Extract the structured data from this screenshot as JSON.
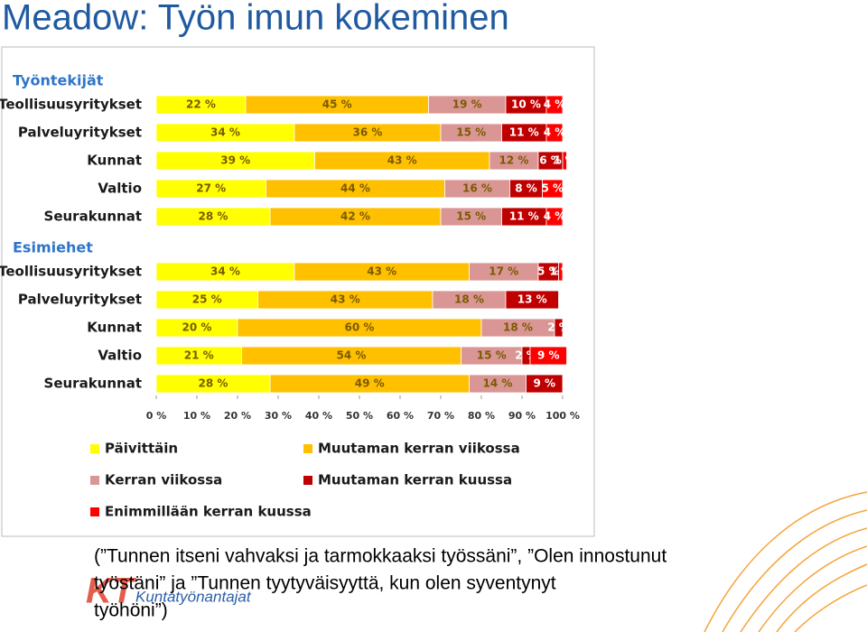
{
  "title": "Meadow: Työn imun kokeminen",
  "chart_data": {
    "type": "bar",
    "orientation": "horizontal",
    "stacked": true,
    "groups": [
      {
        "label": "Työntekijät",
        "count": 5
      },
      {
        "label": "Esimiehet",
        "count": 5
      }
    ],
    "categories": [
      "Teollisuusyritykset",
      "Palveluyritykset",
      "Kunnat",
      "Valtio",
      "Seurakunnat",
      "Teollisuusyritykset",
      "Palveluyritykset",
      "Kunnat",
      "Valtio",
      "Seurakunnat"
    ],
    "series": [
      {
        "name": "Päivittäin",
        "color": "#ffff00",
        "values": [
          22,
          34,
          39,
          27,
          28,
          34,
          25,
          20,
          21,
          28
        ],
        "value_labels": [
          "22 %",
          "34 %",
          "39 %",
          "27 %",
          "28 %",
          "34 %",
          "25 %",
          "20 %",
          "21 %",
          "28 %"
        ]
      },
      {
        "name": "Muutaman kerran viikossa",
        "color": "#ffc000",
        "values": [
          45,
          36,
          43,
          44,
          42,
          43,
          43,
          60,
          54,
          49
        ],
        "value_labels": [
          "45 %",
          "36 %",
          "43 %",
          "44 %",
          "42 %",
          "43 %",
          "43 %",
          "60 %",
          "54 %",
          "49 %"
        ]
      },
      {
        "name": "Kerran viikossa",
        "color": "#d99694",
        "values": [
          19,
          15,
          12,
          16,
          15,
          17,
          18,
          18,
          15,
          14
        ],
        "value_labels": [
          "19 %",
          "15 %",
          "12 %",
          "16 %",
          "15 %",
          "17 %",
          "18 %",
          "18 %",
          "15 %",
          "14 %"
        ]
      },
      {
        "name": "Muutaman kerran kuussa",
        "color": "#c00000",
        "values": [
          10,
          11,
          6,
          8,
          11,
          5,
          13,
          2,
          2,
          9
        ],
        "value_labels": [
          "10 %",
          "11 %",
          "6 %",
          "8 %",
          "11 %",
          "5 %",
          "13 %",
          "2 %",
          "2 %",
          "9 %"
        ]
      },
      {
        "name": "Enimmillään kerran kuussa",
        "color": "#ff0000",
        "values": [
          4,
          4,
          1,
          5,
          4,
          1,
          null,
          null,
          9,
          null
        ],
        "value_labels": [
          "4 %",
          "4 %",
          "1 %",
          "5 %",
          "4 %",
          "1 %",
          null,
          null,
          "9 %",
          null
        ]
      }
    ],
    "xlim": [
      0,
      100
    ],
    "xticks": [
      {
        "value": 0,
        "label": "0 %"
      },
      {
        "value": 10,
        "label": "10 %"
      },
      {
        "value": 20,
        "label": "20 %"
      },
      {
        "value": 30,
        "label": "30 %"
      },
      {
        "value": 40,
        "label": "40 %"
      },
      {
        "value": 50,
        "label": "50 %"
      },
      {
        "value": 60,
        "label": "60 %"
      },
      {
        "value": 70,
        "label": "70 %"
      },
      {
        "value": 80,
        "label": "80 %"
      },
      {
        "value": 90,
        "label": "90 %"
      },
      {
        "value": 100,
        "label": "100 %"
      }
    ]
  },
  "footnote": [
    "(”Tunnen itseni vahvaksi ja tarmokkaaksi työssäni”, ”Olen innostunut",
    "työstäni” ja ”Tunnen tyytyväisyyttä, kun olen syventynyt",
    "työhöni”)"
  ],
  "logo": {
    "mark": "KT",
    "text": "Kuntatyönantajat"
  }
}
